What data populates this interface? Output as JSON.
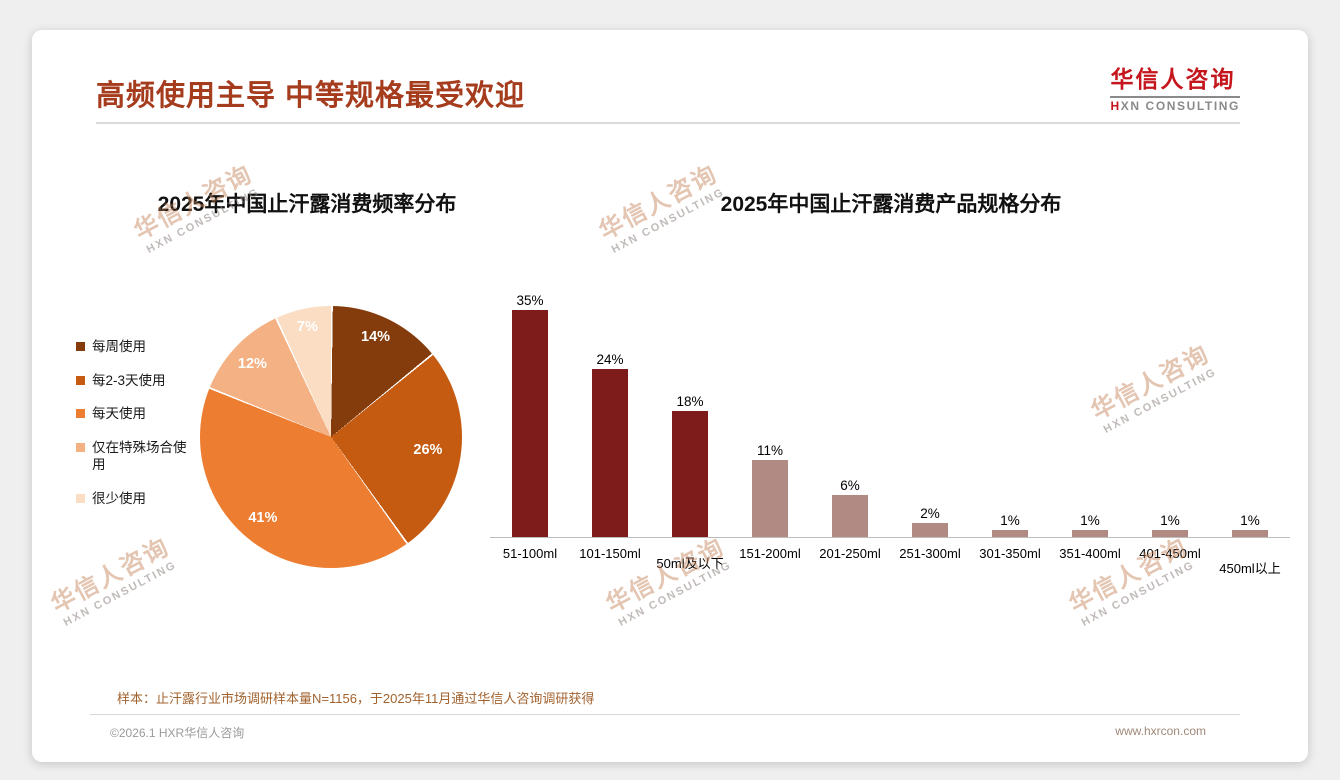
{
  "page": {
    "title": "高频使用主导 中等规格最受欢迎",
    "logo": {
      "cn": "华信人咨询",
      "en": "HXN CONSULTING"
    },
    "watermark": {
      "cn": "华信人咨询",
      "en": "HXN CONSULTING"
    },
    "footnote": "样本：止汗露行业市场调研样本量N=1156，于2025年11月通过华信人咨询调研获得",
    "copyright": "©2026.1 HXR华信人咨询",
    "website": "www.hxrcon.com"
  },
  "chart_data": [
    {
      "type": "pie",
      "title": "2025年中国止汗露消费频率分布",
      "legend_position": "left",
      "data_label_suffix": "%",
      "slices": [
        {
          "label": "每周使用",
          "value": 14,
          "color": "#843C0C"
        },
        {
          "label": "每2-3天使用",
          "value": 26,
          "color": "#C55A11"
        },
        {
          "label": "每天使用",
          "value": 41,
          "color": "#ED7D31"
        },
        {
          "label": "仅在特殊场合使用",
          "value": 12,
          "color": "#F4B183"
        },
        {
          "label": "很少使用",
          "value": 7,
          "color": "#FBDDC3"
        }
      ]
    },
    {
      "type": "bar",
      "title": "2025年中国止汗露消费产品规格分布",
      "categories": [
        "51-100ml",
        "101-150ml",
        "50ml及以下",
        "151-200ml",
        "201-250ml",
        "251-300ml",
        "301-350ml",
        "351-400ml",
        "401-450ml",
        "450ml以上"
      ],
      "values": [
        35,
        24,
        18,
        11,
        6,
        2,
        1,
        1,
        1,
        1
      ],
      "colors": [
        "#7E1B1B",
        "#7E1B1B",
        "#7E1B1B",
        "#B18B83",
        "#B18B83",
        "#B18B83",
        "#B18B83",
        "#B18B83",
        "#B18B83",
        "#B18B83"
      ],
      "ylim": [
        0,
        35
      ],
      "data_label_suffix": "%",
      "grid": false
    }
  ]
}
